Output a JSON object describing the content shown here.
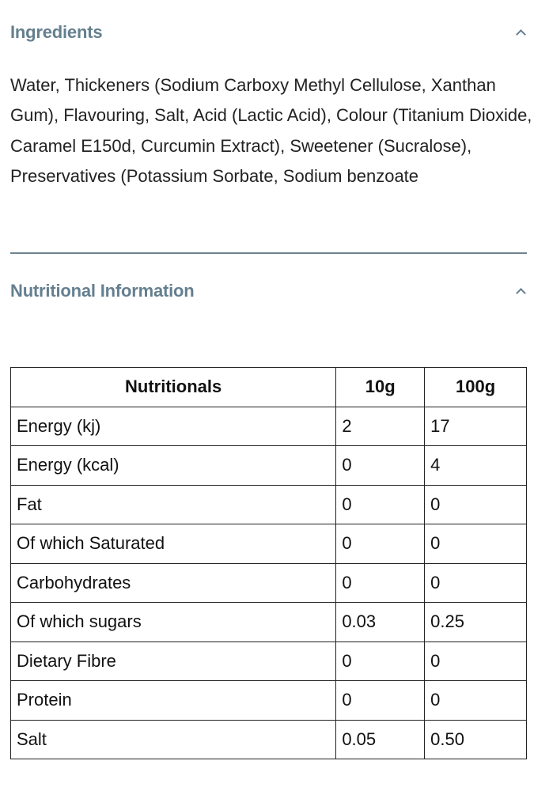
{
  "ingredients": {
    "title": "Ingredients",
    "text": "Water, Thickeners (Sodium Carboxy Methyl Cellulose, Xanthan Gum), Flavouring, Salt, Acid (Lactic Acid), Colour (Titanium Dioxide, Caramel E150d, Curcumin Extract), Sweetener (Sucralose), Preservatives (Potassium Sorbate, Sodium benzoate",
    "toggle_icon": "chevron-up-icon"
  },
  "nutrition": {
    "title": "Nutritional Information",
    "toggle_icon": "chevron-up-icon",
    "headers": [
      "Nutritionals",
      "10g",
      "100g"
    ],
    "rows": [
      [
        "Energy (kj)",
        "2",
        "17"
      ],
      [
        "Energy (kcal)",
        "0",
        "4"
      ],
      [
        "Fat",
        "0",
        "0"
      ],
      [
        "Of which Saturated",
        "0",
        "0"
      ],
      [
        "Carbohydrates",
        "0",
        "0"
      ],
      [
        "Of which sugars",
        "0.03",
        "0.25"
      ],
      [
        "Dietary Fibre",
        "0",
        "0"
      ],
      [
        "Protein",
        "0",
        "0"
      ],
      [
        "Salt",
        "0.05",
        "0.50"
      ]
    ]
  },
  "colors": {
    "heading": "#647f8f",
    "divider": "#6e8490"
  }
}
